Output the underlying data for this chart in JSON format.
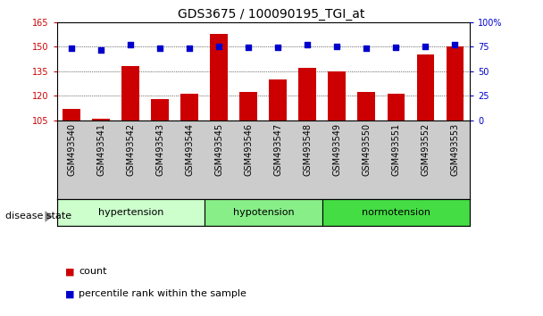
{
  "title": "GDS3675 / 100090195_TGI_at",
  "samples": [
    "GSM493540",
    "GSM493541",
    "GSM493542",
    "GSM493543",
    "GSM493544",
    "GSM493545",
    "GSM493546",
    "GSM493547",
    "GSM493548",
    "GSM493549",
    "GSM493550",
    "GSM493551",
    "GSM493552",
    "GSM493553"
  ],
  "counts": [
    112,
    106,
    138,
    118,
    121,
    158,
    122,
    130,
    137,
    135,
    122,
    121,
    145,
    150
  ],
  "percentiles": [
    73,
    72,
    77,
    73,
    73,
    75,
    74,
    74,
    77,
    75,
    73,
    74,
    75,
    77
  ],
  "groups": [
    {
      "label": "hypertension",
      "start": 0,
      "end": 5,
      "color": "#ccffcc"
    },
    {
      "label": "hypotension",
      "start": 5,
      "end": 9,
      "color": "#88ee88"
    },
    {
      "label": "normotension",
      "start": 9,
      "end": 14,
      "color": "#44dd44"
    }
  ],
  "ylim_left": [
    105,
    165
  ],
  "yticks_left": [
    105,
    120,
    135,
    150,
    165
  ],
  "ylim_right": [
    0,
    100
  ],
  "yticks_right": [
    0,
    25,
    50,
    75,
    100
  ],
  "bar_color": "#cc0000",
  "dot_color": "#0000cc",
  "grid_color": "#000000",
  "bg_color": "#ffffff",
  "tick_area_color": "#cccccc",
  "legend_count_color": "#cc0000",
  "legend_pct_color": "#0000cc",
  "left_axis_color": "#cc0000",
  "right_axis_color": "#0000cc",
  "title_fontsize": 10,
  "tick_fontsize": 7,
  "label_fontsize": 8
}
